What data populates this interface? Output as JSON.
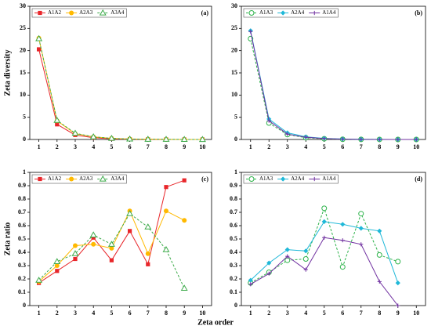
{
  "shared_x_label": "Zeta order",
  "chart_data": [
    {
      "type": "line",
      "panel_label": "(a)",
      "y_label": "Zeta diversity",
      "legend": "upper left",
      "categories": [
        "1",
        "2",
        "3",
        "4",
        "5",
        "6",
        "7",
        "8",
        "9",
        "10"
      ],
      "ylim": [
        0,
        30
      ],
      "yticks": [
        0,
        5,
        10,
        15,
        20,
        25,
        30
      ],
      "series": [
        {
          "name": "A1A2",
          "color": "#e8262a",
          "marker": "square",
          "dashed": false,
          "values": [
            20.3,
            3.4,
            1.0,
            0.4,
            0.15,
            0.06,
            0.03,
            0.01,
            0.005,
            0.002
          ]
        },
        {
          "name": "A2A3",
          "color": "#ffb900",
          "marker": "circle",
          "dashed": false,
          "values": [
            22.8,
            4.2,
            1.3,
            0.6,
            0.25,
            0.12,
            0.06,
            0.03,
            0.01,
            0.005
          ]
        },
        {
          "name": "A3A4",
          "color": "#3daa4a",
          "marker": "triangle",
          "dashed": true,
          "values": [
            22.7,
            4.3,
            1.4,
            0.6,
            0.25,
            0.1,
            0.05,
            0.03,
            0.01,
            0.005
          ]
        }
      ]
    },
    {
      "type": "line",
      "panel_label": "(b)",
      "legend": "upper left",
      "categories": [
        "1",
        "2",
        "3",
        "4",
        "5",
        "6",
        "7",
        "8",
        "9",
        "10"
      ],
      "ylim": [
        0,
        30
      ],
      "yticks": [
        0,
        5,
        10,
        15,
        20,
        25,
        30
      ],
      "series": [
        {
          "name": "A1A3",
          "color": "#2db34a",
          "marker": "open-circle",
          "dashed": true,
          "values": [
            22.7,
            3.7,
            1.1,
            0.4,
            0.15,
            0.05,
            0.02,
            0.01,
            0.005,
            0.002
          ]
        },
        {
          "name": "A2A4",
          "color": "#1fb8d8",
          "marker": "diamond",
          "dashed": false,
          "values": [
            24.5,
            4.6,
            1.5,
            0.6,
            0.25,
            0.1,
            0.05,
            0.02,
            0.01,
            0.005
          ]
        },
        {
          "name": "A1A4",
          "color": "#7030a0",
          "marker": "plus",
          "dashed": false,
          "values": [
            24.3,
            4.2,
            1.2,
            0.5,
            0.2,
            0.08,
            0.03,
            0.01,
            0.005,
            0.002
          ]
        }
      ]
    },
    {
      "type": "line",
      "panel_label": "(c)",
      "y_label": "Zeta ratio",
      "legend": "upper left",
      "categories": [
        "1",
        "2",
        "3",
        "4",
        "5",
        "6",
        "7",
        "8",
        "9",
        "10"
      ],
      "ylim": [
        0,
        1
      ],
      "yticks": [
        0,
        0.1,
        0.2,
        0.3,
        0.4,
        0.5,
        0.6,
        0.7,
        0.8,
        0.9,
        1
      ],
      "series": [
        {
          "name": "A1A2",
          "color": "#e8262a",
          "marker": "square",
          "dashed": false,
          "values": [
            0.17,
            0.26,
            0.35,
            0.51,
            0.34,
            0.56,
            0.31,
            0.89,
            0.94,
            null
          ]
        },
        {
          "name": "A2A3",
          "color": "#ffb900",
          "marker": "circle",
          "dashed": false,
          "values": [
            0.18,
            0.3,
            0.45,
            0.46,
            0.43,
            0.71,
            0.39,
            0.71,
            0.64,
            null
          ]
        },
        {
          "name": "A3A4",
          "color": "#3daa4a",
          "marker": "triangle",
          "dashed": true,
          "values": [
            0.19,
            0.33,
            0.39,
            0.53,
            0.46,
            0.69,
            0.59,
            0.42,
            0.13,
            null
          ]
        }
      ]
    },
    {
      "type": "line",
      "panel_label": "(d)",
      "legend": "upper left",
      "categories": [
        "1",
        "2",
        "3",
        "4",
        "5",
        "6",
        "7",
        "8",
        "9",
        "10"
      ],
      "ylim": [
        0,
        1
      ],
      "yticks": [
        0,
        0.1,
        0.2,
        0.3,
        0.4,
        0.5,
        0.6,
        0.7,
        0.8,
        0.9,
        1
      ],
      "series": [
        {
          "name": "A1A3",
          "color": "#2db34a",
          "marker": "open-circle",
          "dashed": true,
          "values": [
            0.17,
            0.25,
            0.34,
            0.35,
            0.73,
            0.29,
            0.69,
            0.38,
            0.33,
            null
          ]
        },
        {
          "name": "A2A4",
          "color": "#1fb8d8",
          "marker": "diamond",
          "dashed": false,
          "values": [
            0.19,
            0.32,
            0.42,
            0.41,
            0.63,
            0.61,
            0.58,
            0.56,
            0.17,
            null
          ]
        },
        {
          "name": "A1A4",
          "color": "#7030a0",
          "marker": "plus",
          "dashed": false,
          "values": [
            0.16,
            0.24,
            0.37,
            0.27,
            0.51,
            0.49,
            0.46,
            0.18,
            0,
            null
          ]
        }
      ]
    }
  ]
}
